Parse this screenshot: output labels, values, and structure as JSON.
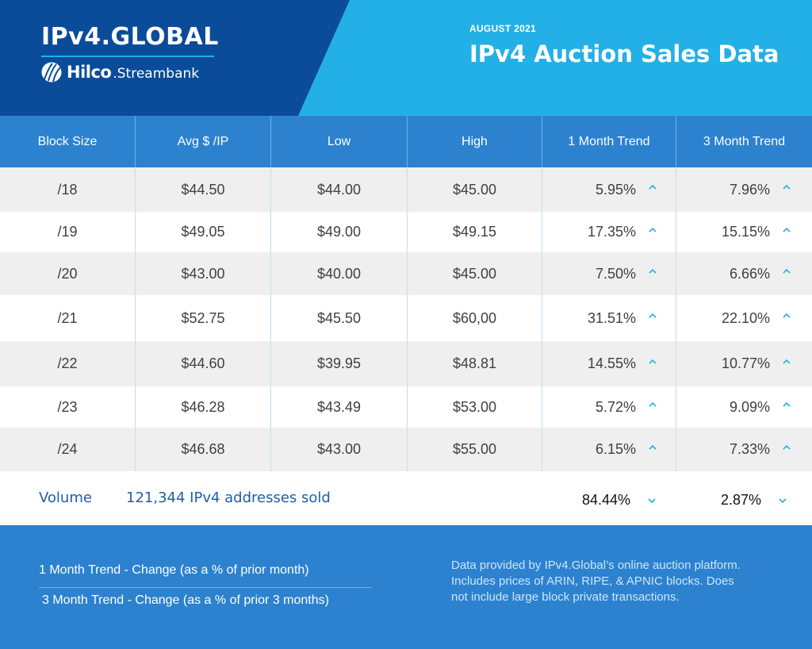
{
  "header": {
    "brand": "IPv4.GLOBAL",
    "partner_name": "Hilco",
    "partner_suffix": ".Streambank",
    "month": "AUGUST 2021",
    "title": "IPv4 Auction Sales Data"
  },
  "table": {
    "columns": [
      "Block Size",
      "Avg $ /IP",
      "Low",
      "High",
      "1 Month Trend",
      "3 Month Trend"
    ],
    "rows": [
      {
        "block": "/18",
        "avg": "$44.50",
        "low": "$44.00",
        "high": "$45.00",
        "trend1": "5.95%",
        "trend3": "7.96%"
      },
      {
        "block": "/19",
        "avg": "$49.05",
        "low": "$49.00",
        "high": "$49.15",
        "trend1": "17.35%",
        "trend3": "15.15%"
      },
      {
        "block": "/20",
        "avg": "$43.00",
        "low": "$40.00",
        "high": "$45.00",
        "trend1": "7.50%",
        "trend3": "6.66%"
      },
      {
        "block": "/21",
        "avg": "$52.75",
        "low": "$45.50",
        "high": "$60,00",
        "trend1": "31.51%",
        "trend3": "22.10%"
      },
      {
        "block": "/22",
        "avg": "$44.60",
        "low": "$39.95",
        "high": "$48.81",
        "trend1": "14.55%",
        "trend3": "10.77%"
      },
      {
        "block": "/23",
        "avg": "$46.28",
        "low": "$43.49",
        "high": "$53.00",
        "trend1": "5.72%",
        "trend3": "9.09%"
      },
      {
        "block": "/24",
        "avg": "$46.68",
        "low": "$43.00",
        "high": "$55.00",
        "trend1": "6.15%",
        "trend3": "7.33%"
      }
    ],
    "trend_up_icon": "chevron-up-icon",
    "trend_down_icon": "chevron-down-icon"
  },
  "volume": {
    "label": "Volume",
    "text": "121,344 IPv4 addresses sold",
    "trend1": "84.44%",
    "trend3": "2.87%"
  },
  "footer": {
    "legend1": "1 Month Trend - Change (as a % of prior month)",
    "legend2": "3 Month Trend - Change (as a % of prior 3 months)",
    "note": "Data provided by IPv4.Global’s online auction platform. Includes prices of ARIN, RIPE, & APNIC blocks. Does not include large block private transactions."
  },
  "colors": {
    "header_dark": "#0a4c9a",
    "header_light": "#23b0e6",
    "table_header": "#2c82cf",
    "row_shade": "#efefef",
    "volume_text": "#1f5ea8",
    "arrow": "#23b0e6"
  }
}
